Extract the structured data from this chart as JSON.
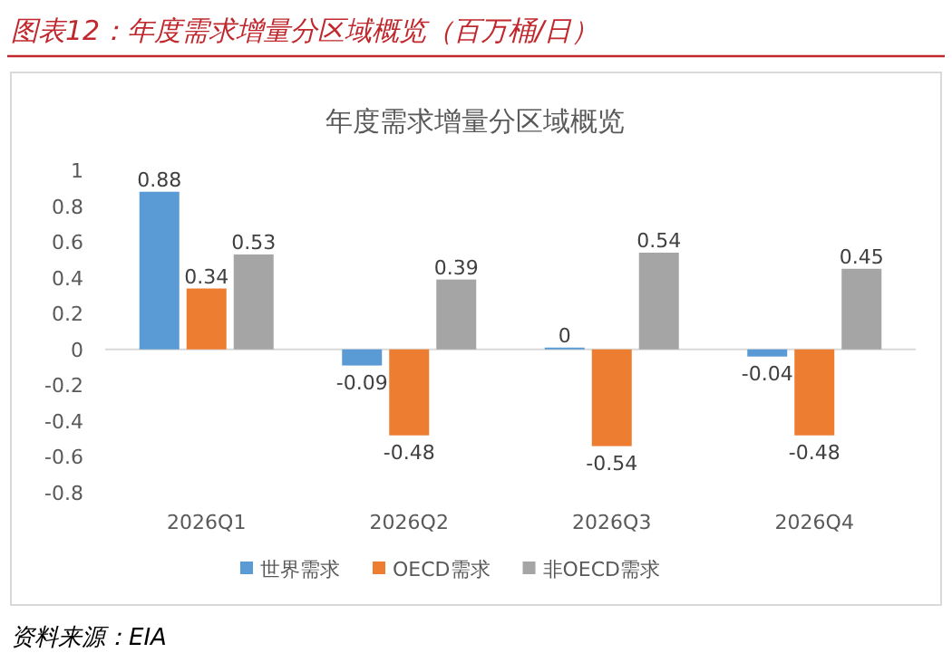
{
  "chart_data": {
    "type": "bar",
    "title": "图表12：年度需求增量分区域概览（百万桶/日）",
    "subtitle": "年度需求增量分区域概览",
    "categories": [
      "2026Q1",
      "2026Q2",
      "2026Q3",
      "2026Q4"
    ],
    "series": [
      {
        "name": "世界需求",
        "color": "#5b9bd5",
        "values": [
          0.88,
          -0.09,
          0,
          -0.04
        ]
      },
      {
        "name": "OECD需求",
        "color": "#ed7d31",
        "values": [
          0.34,
          -0.48,
          -0.54,
          -0.48
        ]
      },
      {
        "name": "非OECD需求",
        "color": "#a5a5a5",
        "values": [
          0.53,
          0.39,
          0.54,
          0.45
        ]
      }
    ],
    "ylim": [
      -0.8,
      1
    ],
    "yticks": [
      -0.8,
      -0.6,
      -0.4,
      -0.2,
      0,
      0.2,
      0.4,
      0.6,
      0.8,
      1
    ],
    "data_labels": true,
    "legend": "bottom",
    "annotations": [
      "资料来源：EIA"
    ]
  }
}
